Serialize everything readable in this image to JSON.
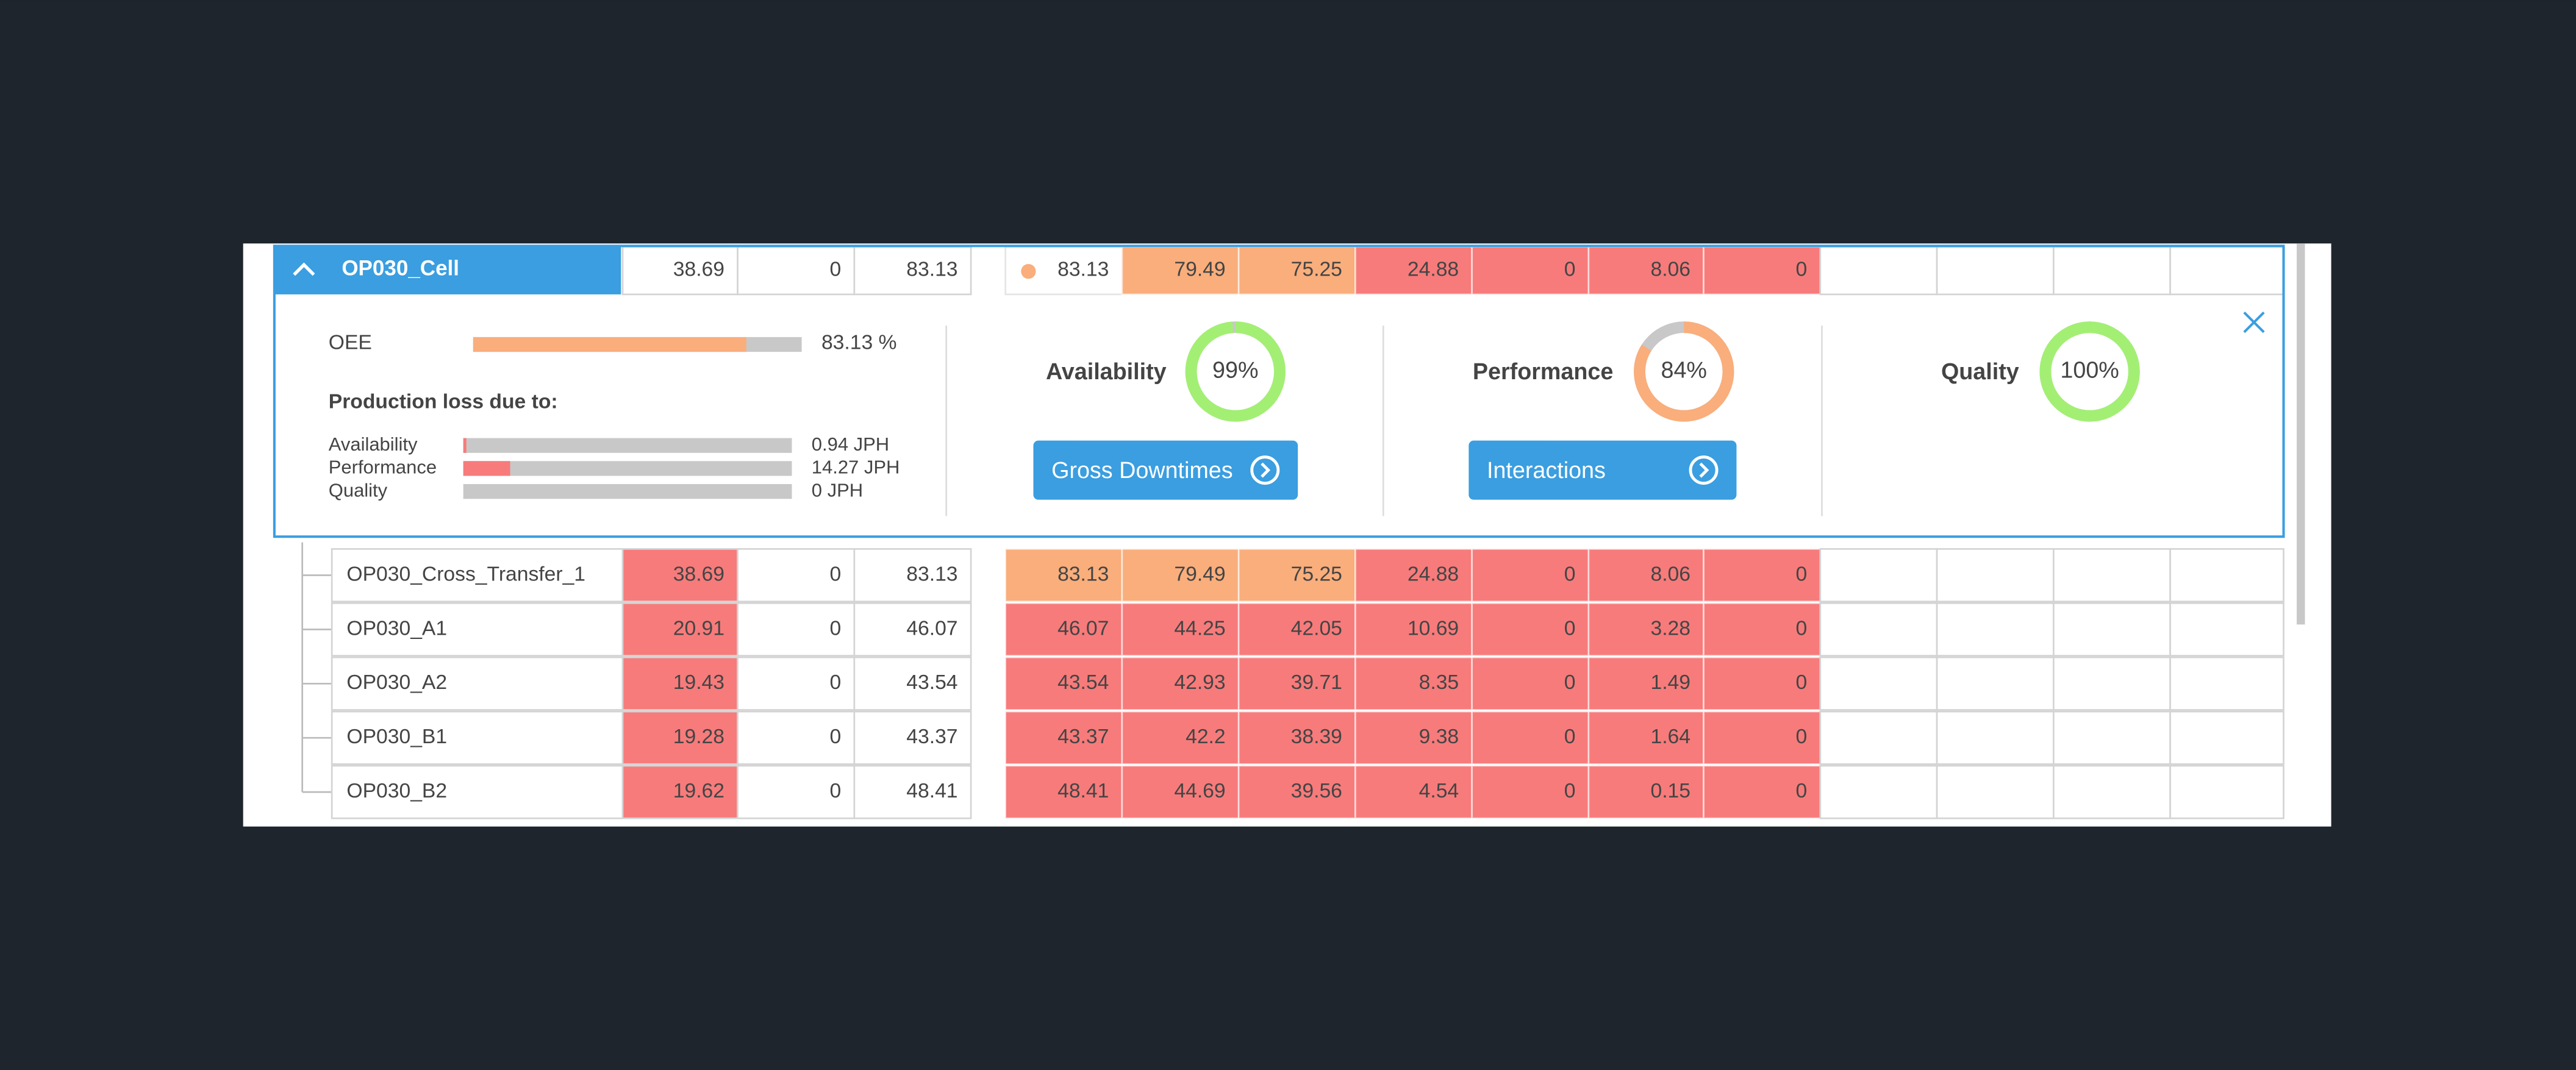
{
  "header_row": {
    "name": "OP030_Cell",
    "cells": [
      38.69,
      0,
      83.13
    ],
    "cells2": [
      83.13,
      79.49,
      75.25,
      24.88,
      0,
      8.06,
      0
    ],
    "colors": [
      "#ffffff",
      "#ffffff",
      "#ffffff"
    ],
    "colors2": [
      "#ffffff",
      "#f9ae7c",
      "#f9ae7c",
      "#f77b7b",
      "#f77b7b",
      "#f77b7b",
      "#f77b7b"
    ]
  },
  "detail": {
    "xlim": [
      0,
      100
    ],
    "oee": {
      "label": "OEE",
      "value": 83.13,
      "value_label": "83.13 %",
      "color": "#f9ae7c"
    },
    "loss_title": "Production loss due to:",
    "losses": [
      {
        "label": "Availability",
        "value": 0.94,
        "value_label": "0.94 JPH"
      },
      {
        "label": "Performance",
        "value": 14.27,
        "value_label": "14.27 JPH"
      },
      {
        "label": "Quality",
        "value": 0,
        "value_label": "0 JPH"
      }
    ],
    "loss_color": "#f77b7b",
    "kpis": [
      {
        "label": "Availability",
        "value": 99,
        "value_label": "99%",
        "color": "#a3ef74"
      },
      {
        "label": "Performance",
        "value": 84,
        "value_label": "84%",
        "color": "#f9ae7c"
      },
      {
        "label": "Quality",
        "value": 100,
        "value_label": "100%",
        "color": "#a3ef74"
      }
    ],
    "buttons": [
      "Gross Downtimes",
      "Interactions"
    ]
  },
  "rows": [
    {
      "name": "OP030_Cross_Transfer_1",
      "cells": [
        38.69,
        0,
        83.13
      ],
      "cells2": [
        83.13,
        79.49,
        75.25,
        24.88,
        0,
        8.06,
        0
      ],
      "colors": [
        "#f77b7b",
        "#ffffff",
        "#ffffff"
      ],
      "colors2": [
        "#f9ae7c",
        "#f9ae7c",
        "#f9ae7c",
        "#f77b7b",
        "#f77b7b",
        "#f77b7b",
        "#f77b7b"
      ]
    },
    {
      "name": "OP030_A1",
      "cells": [
        20.91,
        0,
        46.07
      ],
      "cells2": [
        46.07,
        44.25,
        42.05,
        10.69,
        0,
        3.28,
        0
      ],
      "colors": [
        "#f77b7b",
        "#ffffff",
        "#ffffff"
      ],
      "colors2": [
        "#f77b7b",
        "#f77b7b",
        "#f77b7b",
        "#f77b7b",
        "#f77b7b",
        "#f77b7b",
        "#f77b7b"
      ]
    },
    {
      "name": "OP030_A2",
      "cells": [
        19.43,
        0,
        43.54
      ],
      "cells2": [
        43.54,
        42.93,
        39.71,
        8.35,
        0,
        1.49,
        0
      ],
      "colors": [
        "#f77b7b",
        "#ffffff",
        "#ffffff"
      ],
      "colors2": [
        "#f77b7b",
        "#f77b7b",
        "#f77b7b",
        "#f77b7b",
        "#f77b7b",
        "#f77b7b",
        "#f77b7b"
      ]
    },
    {
      "name": "OP030_B1",
      "cells": [
        19.28,
        0,
        43.37
      ],
      "cells2": [
        43.37,
        42.2,
        38.39,
        9.38,
        0,
        1.64,
        0
      ],
      "colors": [
        "#f77b7b",
        "#ffffff",
        "#ffffff"
      ],
      "colors2": [
        "#f77b7b",
        "#f77b7b",
        "#f77b7b",
        "#f77b7b",
        "#f77b7b",
        "#f77b7b",
        "#f77b7b"
      ]
    },
    {
      "name": "OP030_B2",
      "cells": [
        19.62,
        0,
        48.41
      ],
      "cells2": [
        48.41,
        44.69,
        39.56,
        4.54,
        0,
        0.15,
        0
      ],
      "colors": [
        "#f77b7b",
        "#ffffff",
        "#ffffff"
      ],
      "colors2": [
        "#f77b7b",
        "#f77b7b",
        "#f77b7b",
        "#f77b7b",
        "#f77b7b",
        "#f77b7b",
        "#f77b7b"
      ]
    }
  ]
}
